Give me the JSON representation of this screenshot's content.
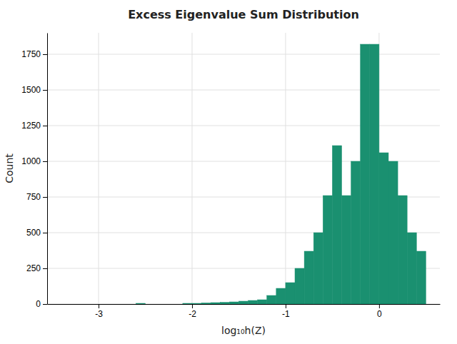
{
  "chart_data": {
    "type": "histogram",
    "title": "Excess Eigenvalue Sum Distribution",
    "x_label": "log₁₀h(Z)",
    "y_label": "Count",
    "color": "#1a9070",
    "bins": [
      -3.5,
      -3.4,
      -3.3,
      -3.2,
      -3.1,
      -3.0,
      -2.9,
      -2.8,
      -2.7,
      -2.6,
      -2.5,
      -2.4,
      -2.3,
      -2.2,
      -2.1,
      -2.0,
      -1.9,
      -1.8,
      -1.7,
      -1.6,
      -1.5,
      -1.4,
      -1.3,
      -1.2,
      -1.1,
      -1.0,
      -0.9,
      -0.8,
      -0.7,
      -0.6,
      -0.5,
      -0.4,
      -0.3,
      -0.2,
      -0.1,
      0.0,
      0.1,
      0.2,
      0.3,
      0.4,
      0.5,
      0.6
    ],
    "values": [
      0,
      0,
      0,
      0,
      0,
      0,
      0,
      0,
      0,
      5,
      0,
      0,
      0,
      0,
      5,
      5,
      8,
      10,
      12,
      15,
      20,
      25,
      30,
      60,
      110,
      150,
      250,
      370,
      500,
      760,
      1110,
      760,
      1000,
      1820,
      1820,
      1060,
      1000,
      760,
      500,
      370,
      0
    ],
    "xlim": [
      -3.55,
      0.65
    ],
    "ylim": [
      0,
      1900
    ],
    "xticks": [
      -3,
      -2,
      -1,
      0
    ],
    "yticks": [
      0,
      250,
      500,
      750,
      1000,
      1250,
      1500,
      1750
    ],
    "grid": true
  }
}
